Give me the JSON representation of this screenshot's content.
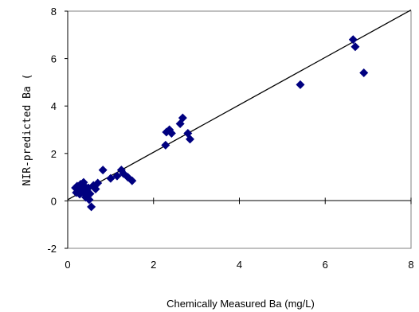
{
  "chart_data": {
    "type": "scatter",
    "title": "",
    "xlabel": "Chemically Measured Ba (mg/L)",
    "ylabel": "NIR-predicted Ba (",
    "xlim": [
      0,
      8
    ],
    "ylim": [
      -2,
      8
    ],
    "x_ticks": [
      0,
      2,
      4,
      6,
      8
    ],
    "y_ticks": [
      -2,
      0,
      2,
      4,
      6,
      8
    ],
    "x_tick_labels": [
      "0",
      "2",
      "4",
      "6",
      "8"
    ],
    "y_tick_labels": [
      "-2",
      "0",
      "2",
      "4",
      "6",
      "8"
    ],
    "grid": false,
    "legend": "none",
    "marker_color": "#000080",
    "marker_shape": "diamond",
    "trendline": {
      "x": [
        0,
        8
      ],
      "y": [
        0.05,
        8.05
      ]
    },
    "points": [
      {
        "x": 0.18,
        "y": 0.55
      },
      {
        "x": 0.2,
        "y": 0.35
      },
      {
        "x": 0.22,
        "y": 0.62
      },
      {
        "x": 0.25,
        "y": 0.45
      },
      {
        "x": 0.28,
        "y": 0.28
      },
      {
        "x": 0.3,
        "y": 0.7
      },
      {
        "x": 0.32,
        "y": 0.5
      },
      {
        "x": 0.35,
        "y": 0.38
      },
      {
        "x": 0.37,
        "y": 0.78
      },
      {
        "x": 0.4,
        "y": 0.6
      },
      {
        "x": 0.42,
        "y": 0.15
      },
      {
        "x": 0.45,
        "y": 0.42
      },
      {
        "x": 0.48,
        "y": 0.55
      },
      {
        "x": 0.5,
        "y": 0.05
      },
      {
        "x": 0.52,
        "y": 0.3
      },
      {
        "x": 0.55,
        "y": -0.25
      },
      {
        "x": 0.6,
        "y": 0.65
      },
      {
        "x": 0.65,
        "y": 0.5
      },
      {
        "x": 0.7,
        "y": 0.75
      },
      {
        "x": 0.82,
        "y": 1.3
      },
      {
        "x": 1.0,
        "y": 0.95
      },
      {
        "x": 1.15,
        "y": 1.05
      },
      {
        "x": 1.25,
        "y": 1.3
      },
      {
        "x": 1.3,
        "y": 1.15
      },
      {
        "x": 1.4,
        "y": 1.0
      },
      {
        "x": 1.5,
        "y": 0.85
      },
      {
        "x": 2.28,
        "y": 2.35
      },
      {
        "x": 2.3,
        "y": 2.9
      },
      {
        "x": 2.37,
        "y": 3.0
      },
      {
        "x": 2.42,
        "y": 2.85
      },
      {
        "x": 2.62,
        "y": 3.25
      },
      {
        "x": 2.68,
        "y": 3.5
      },
      {
        "x": 2.8,
        "y": 2.85
      },
      {
        "x": 2.85,
        "y": 2.6
      },
      {
        "x": 5.42,
        "y": 4.9
      },
      {
        "x": 6.65,
        "y": 6.8
      },
      {
        "x": 6.7,
        "y": 6.5
      },
      {
        "x": 6.9,
        "y": 5.4
      }
    ]
  }
}
